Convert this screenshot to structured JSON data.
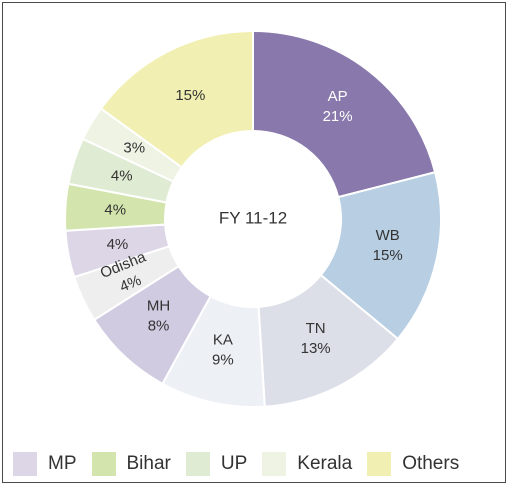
{
  "chart_data": {
    "type": "pie",
    "variant": "donut",
    "center_label": "FY 11-12",
    "slices": [
      {
        "label": "AP",
        "value": 21,
        "value_label": "21%",
        "color": "#8878ab"
      },
      {
        "label": "WB",
        "value": 15,
        "value_label": "15%",
        "color": "#b8cfe3"
      },
      {
        "label": "TN",
        "value": 13,
        "value_label": "13%",
        "color": "#dcdfe8"
      },
      {
        "label": "KA",
        "value": 9,
        "value_label": "9%",
        "color": "#edf0f5"
      },
      {
        "label": "MH",
        "value": 8,
        "value_label": "8%",
        "color": "#d1cbe1"
      },
      {
        "label": "Odisha",
        "value": 4,
        "value_label": "4%",
        "color": "#eeeeee"
      },
      {
        "label": "MP",
        "value": 4,
        "value_label": "4%",
        "color": "#dcd6e6"
      },
      {
        "label": "Bihar",
        "value": 4,
        "value_label": "4%",
        "color": "#d3e5ad"
      },
      {
        "label": "UP",
        "value": 4,
        "value_label": "4%",
        "color": "#e0ebd4"
      },
      {
        "label": "Kerala",
        "value": 3,
        "value_label": "3%",
        "color": "#eef3e4"
      },
      {
        "label": "Others",
        "value": 15,
        "value_label": "15%",
        "color": "#f1f0b2"
      }
    ],
    "legend": {
      "placement": "bottom",
      "entries": [
        {
          "label": "MP",
          "color": "#dcd6e6"
        },
        {
          "label": "Bihar",
          "color": "#d3e5ad"
        },
        {
          "label": "UP",
          "color": "#e0ebd4"
        },
        {
          "label": "Kerala",
          "color": "#eef3e4"
        },
        {
          "label": "Others",
          "color": "#f1f0b2"
        }
      ]
    }
  }
}
